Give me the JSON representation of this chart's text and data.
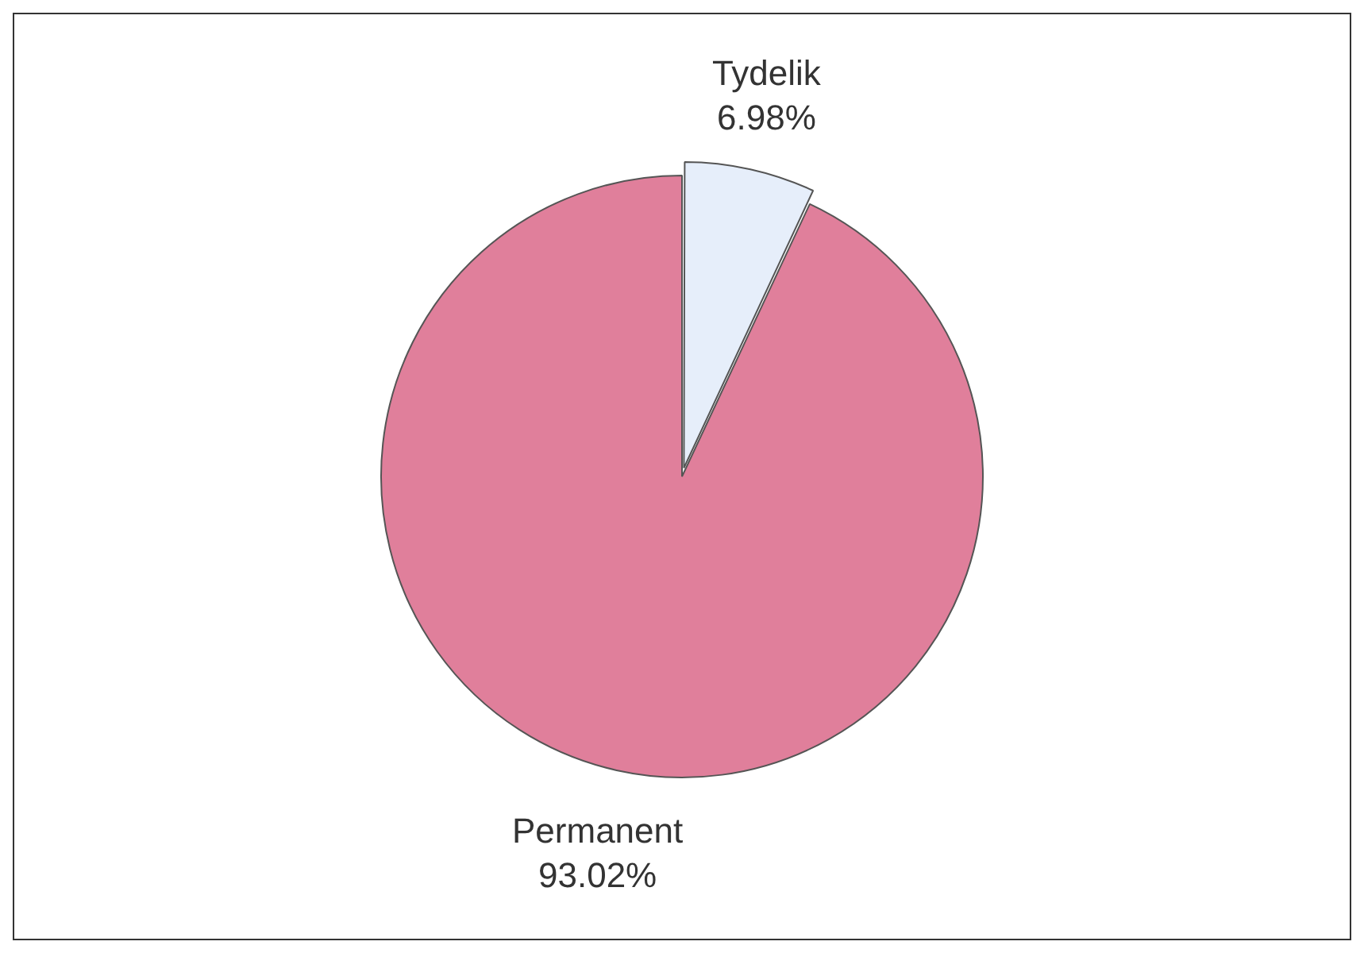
{
  "chart_data": {
    "type": "pie",
    "categories": [
      "Tydelik",
      "Permanent"
    ],
    "values": [
      6.98,
      93.02
    ],
    "colors": [
      "#e6eefa",
      "#e07f9b"
    ],
    "value_labels": [
      "6.98%",
      "93.02%"
    ],
    "legend": false
  }
}
